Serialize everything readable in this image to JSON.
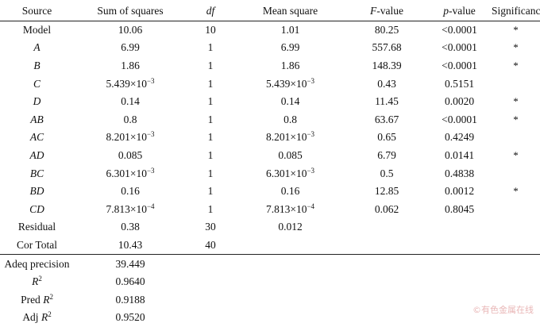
{
  "columns": [
    "Source",
    "Sum of squares",
    "df",
    "Mean square",
    "F-value",
    "p-value",
    "Significance"
  ],
  "column_parts": {
    "df": {
      "italic": "df",
      "rest": ""
    },
    "f_value": {
      "italic": "F",
      "rest": "-value"
    },
    "p_value": {
      "italic": "p",
      "rest": "-value"
    }
  },
  "rows": [
    {
      "source": "Model",
      "ss": "10.06",
      "df": "10",
      "ms": "1.01",
      "f": "80.25",
      "p": "<0.0001",
      "sig": "*"
    },
    {
      "source": "A",
      "ss": "6.99",
      "df": "1",
      "ms": "6.99",
      "f": "557.68",
      "p": "<0.0001",
      "sig": "*"
    },
    {
      "source": "B",
      "ss": "1.86",
      "df": "1",
      "ms": "1.86",
      "f": "148.39",
      "p": "<0.0001",
      "sig": "*"
    },
    {
      "source": "C",
      "ss": "5.439×10",
      "ss_exp": "−3",
      "df": "1",
      "ms": "5.439×10",
      "ms_exp": "−3",
      "f": "0.43",
      "p": "0.5151",
      "sig": ""
    },
    {
      "source": "D",
      "ss": "0.14",
      "df": "1",
      "ms": "0.14",
      "f": "11.45",
      "p": "0.0020",
      "sig": "*"
    },
    {
      "source": "AB",
      "ss": "0.8",
      "df": "1",
      "ms": "0.8",
      "f": "63.67",
      "p": "<0.0001",
      "sig": "*"
    },
    {
      "source": "AC",
      "ss": "8.201×10",
      "ss_exp": "−3",
      "df": "1",
      "ms": "8.201×10",
      "ms_exp": "−3",
      "f": "0.65",
      "p": "0.4249",
      "sig": ""
    },
    {
      "source": "AD",
      "ss": "0.085",
      "df": "1",
      "ms": "0.085",
      "f": "6.79",
      "p": "0.0141",
      "sig": "*"
    },
    {
      "source": "BC",
      "ss": "6.301×10",
      "ss_exp": "−3",
      "df": "1",
      "ms": "6.301×10",
      "ms_exp": "−3",
      "f": "0.5",
      "p": "0.4838",
      "sig": ""
    },
    {
      "source": "BD",
      "ss": "0.16",
      "df": "1",
      "ms": "0.16",
      "f": "12.85",
      "p": "0.0012",
      "sig": "*"
    },
    {
      "source": "CD",
      "ss": "7.813×10",
      "ss_exp": "−4",
      "df": "1",
      "ms": "7.813×10",
      "ms_exp": "−4",
      "f": "0.062",
      "p": "0.8045",
      "sig": ""
    },
    {
      "source": "Residual",
      "ss": "0.38",
      "df": "30",
      "ms": "0.012",
      "f": "",
      "p": "",
      "sig": ""
    },
    {
      "source": "Cor Total",
      "ss": "10.43",
      "df": "40",
      "ms": "",
      "f": "",
      "p": "",
      "sig": ""
    }
  ],
  "summary": [
    {
      "label": "Adeq precision",
      "value": "39.449"
    },
    {
      "label_pre": "",
      "label_it": "R",
      "label_sup": "2",
      "value": "0.9640"
    },
    {
      "label_pre": "Pred ",
      "label_it": "R",
      "label_sup": "2",
      "value": "0.9188"
    },
    {
      "label_pre": "Adj ",
      "label_it": "R",
      "label_sup": "2",
      "value": "0.9520"
    }
  ],
  "watermark": "©有色金属在线"
}
